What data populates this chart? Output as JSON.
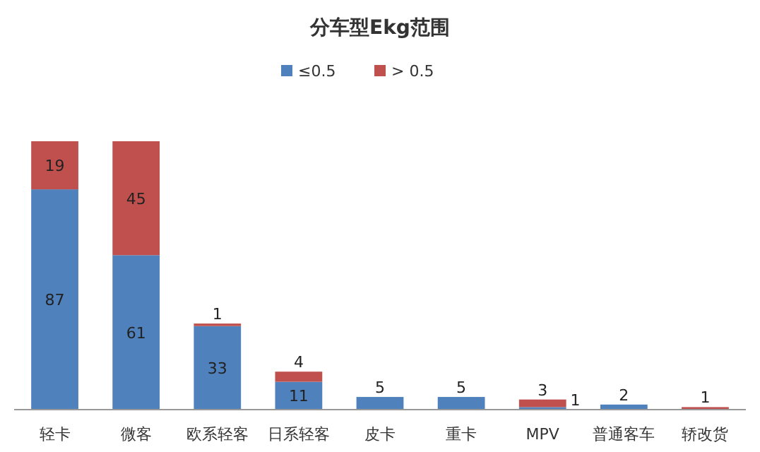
{
  "chart_data": {
    "type": "bar",
    "title": "分车型Ekg范围",
    "stacked": true,
    "data_labels": true,
    "legend": "top",
    "categories": [
      "轻卡",
      "微客",
      "欧系轻客",
      "日系轻客",
      "皮卡",
      "重卡",
      "MPV",
      "普通客车",
      "轿改货"
    ],
    "series": [
      {
        "name": "≤0.5",
        "color": "#4f81bd",
        "values": [
          87,
          61,
          33,
          11,
          5,
          5,
          1,
          2,
          null
        ]
      },
      {
        "name": "> 0.5",
        "color": "#c0504d",
        "values": [
          19,
          45,
          1,
          4,
          null,
          null,
          3,
          null,
          1
        ]
      }
    ]
  }
}
